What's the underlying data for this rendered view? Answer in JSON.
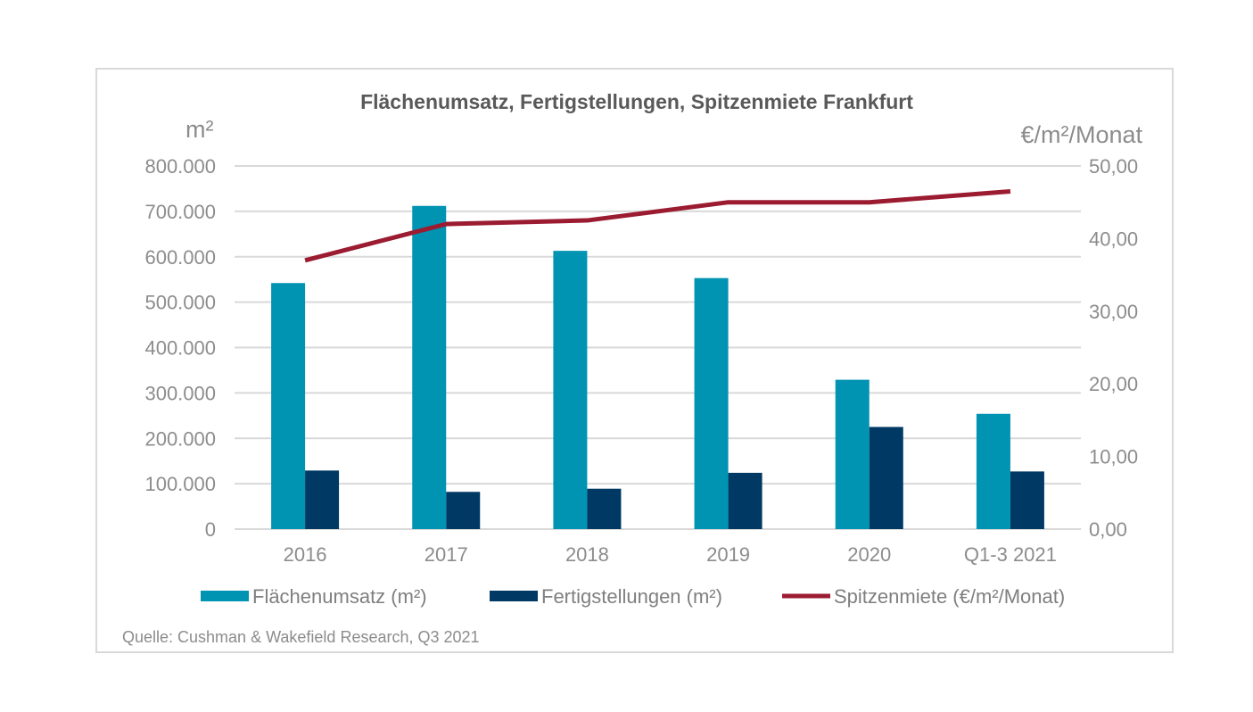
{
  "chart_data": {
    "type": "bar",
    "title": "Flächenumsatz, Fertigstellungen, Spitzenmiete Frankfurt",
    "y_left_unit": "m²",
    "y_right_unit": "€/m²/Monat",
    "categories": [
      "2016",
      "2017",
      "2018",
      "2019",
      "2020",
      "Q1-3 2021"
    ],
    "y_left": {
      "min": 0,
      "max": 800000,
      "ticks": [
        0,
        100000,
        200000,
        300000,
        400000,
        500000,
        600000,
        700000,
        800000
      ],
      "tick_labels": [
        "0",
        "100.000",
        "200.000",
        "300.000",
        "400.000",
        "500.000",
        "600.000",
        "700.000",
        "800.000"
      ]
    },
    "y_right": {
      "min": 0,
      "max": 50,
      "ticks": [
        0,
        10,
        20,
        30,
        40,
        50
      ],
      "tick_labels": [
        "0,00",
        "10,00",
        "20,00",
        "30,00",
        "40,00",
        "50,00"
      ]
    },
    "series": [
      {
        "name": "Flächenumsatz (m²)",
        "type": "bar",
        "axis": "left",
        "color": "#0093b2",
        "values": [
          542000,
          712000,
          613000,
          553000,
          329000,
          254000
        ]
      },
      {
        "name": "Fertigstellungen (m²)",
        "type": "bar",
        "axis": "left",
        "color": "#003963",
        "values": [
          129000,
          82000,
          89000,
          124000,
          225000,
          127000
        ]
      },
      {
        "name": "Spitzenmiete (€/m²/Monat)",
        "type": "line",
        "axis": "right",
        "color": "#9b1c31",
        "values": [
          37.0,
          42.0,
          42.5,
          45.0,
          45.0,
          46.5
        ]
      }
    ],
    "grid": true,
    "legend": "bottom"
  },
  "source": "Quelle: Cushman & Wakefield Research, Q3 2021"
}
